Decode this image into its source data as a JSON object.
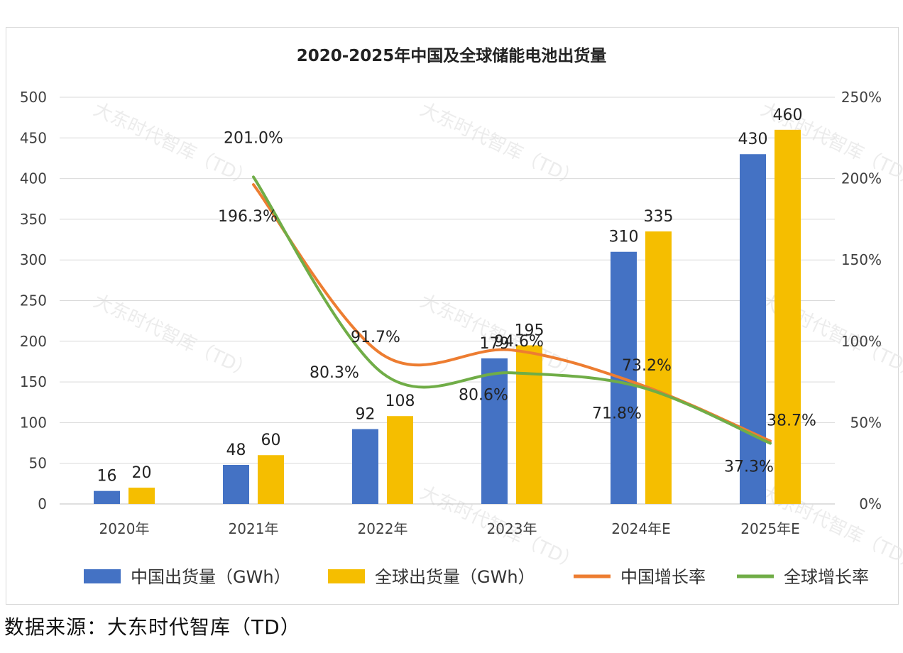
{
  "chart_data": {
    "type": "bar",
    "title": "2020-2025年中国及全球储能电池出货量",
    "categories": [
      "2020年",
      "2021年",
      "2022年",
      "2023年",
      "2024年E",
      "2025年E"
    ],
    "series": [
      {
        "name": "中国出货量（GWh）",
        "type": "bar",
        "axis": "left",
        "color": "#4472C4",
        "values": [
          16,
          48,
          92,
          179,
          310,
          430
        ],
        "labels": [
          "16",
          "48",
          "92",
          "179",
          "310",
          "430"
        ]
      },
      {
        "name": "全球出货量（GWh）",
        "type": "bar",
        "axis": "left",
        "color": "#F5BE00",
        "values": [
          20,
          60,
          108,
          195,
          335,
          460
        ],
        "labels": [
          "20",
          "60",
          "108",
          "195",
          "335",
          "460"
        ]
      },
      {
        "name": "中国增长率",
        "type": "line",
        "axis": "right",
        "color": "#ED7D31",
        "values": [
          null,
          196.3,
          91.7,
          94.6,
          73.2,
          38.7
        ],
        "labels": [
          "",
          "196.3%",
          "91.7%",
          "94.6%",
          "73.2%",
          "38.7%"
        ]
      },
      {
        "name": "全球增长率",
        "type": "line",
        "axis": "right",
        "color": "#70AD47",
        "values": [
          null,
          201.0,
          80.3,
          80.6,
          71.8,
          37.3
        ],
        "labels": [
          "",
          "201.0%",
          "80.3%",
          "80.6%",
          "71.8%",
          "37.3%"
        ]
      }
    ],
    "y_left": {
      "min": 0,
      "max": 500,
      "ticks": [
        "0",
        "50",
        "100",
        "150",
        "200",
        "250",
        "300",
        "350",
        "400",
        "450",
        "500"
      ]
    },
    "y_right": {
      "min": 0,
      "max": 250,
      "ticks": [
        "0%",
        "50%",
        "100%",
        "150%",
        "200%",
        "250%"
      ]
    },
    "grid": true,
    "legend": "bottom",
    "watermark": "大东时代智库（TD）"
  },
  "source_text": "数据来源：大东时代智库（TD）"
}
